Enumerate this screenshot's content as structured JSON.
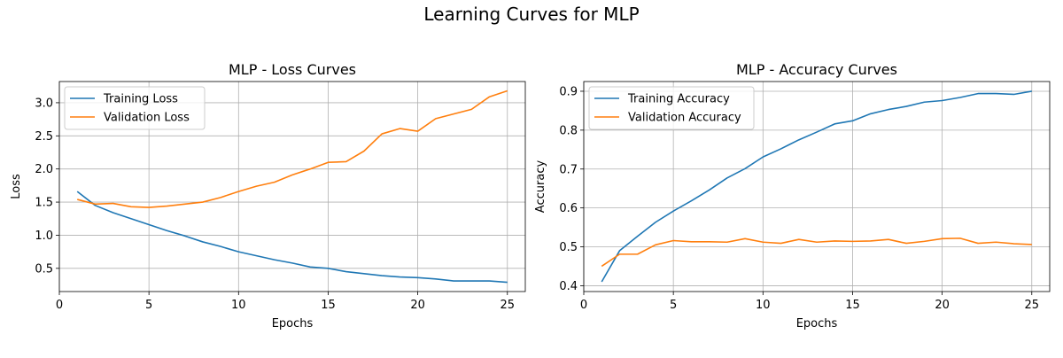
{
  "figure": {
    "title": "Learning Curves for MLP"
  },
  "chart_data": [
    {
      "type": "line",
      "title": "MLP - Loss Curves",
      "xlabel": "Epochs",
      "ylabel": "Loss",
      "xlim": [
        0,
        26
      ],
      "ylim": [
        0.15,
        3.32
      ],
      "xticks": [
        0,
        5,
        10,
        15,
        20,
        25
      ],
      "yticks": [
        0.5,
        1.0,
        1.5,
        2.0,
        2.5,
        3.0
      ],
      "ytick_labels": [
        "0.5",
        "1.0",
        "1.5",
        "2.0",
        "2.5",
        "3.0"
      ],
      "grid": true,
      "legend": "upper left",
      "x": [
        1,
        2,
        3,
        4,
        5,
        6,
        7,
        8,
        9,
        10,
        11,
        12,
        13,
        14,
        15,
        16,
        17,
        18,
        19,
        20,
        21,
        22,
        23,
        24,
        25
      ],
      "series": [
        {
          "name": "Training Loss",
          "color": "#1f77b4",
          "values": [
            1.66,
            1.45,
            1.34,
            1.25,
            1.16,
            1.07,
            0.99,
            0.9,
            0.83,
            0.75,
            0.69,
            0.63,
            0.58,
            0.52,
            0.5,
            0.45,
            0.42,
            0.39,
            0.37,
            0.36,
            0.34,
            0.31,
            0.31,
            0.31,
            0.29
          ]
        },
        {
          "name": "Validation Loss",
          "color": "#ff7f0e",
          "values": [
            1.54,
            1.47,
            1.48,
            1.43,
            1.42,
            1.44,
            1.47,
            1.5,
            1.57,
            1.66,
            1.74,
            1.8,
            1.91,
            2.0,
            2.1,
            2.11,
            2.27,
            2.53,
            2.61,
            2.57,
            2.76,
            2.83,
            2.9,
            3.09,
            3.18
          ]
        }
      ]
    },
    {
      "type": "line",
      "title": "MLP - Accuracy Curves",
      "xlabel": "Epochs",
      "ylabel": "Accuracy",
      "xlim": [
        0,
        26
      ],
      "ylim": [
        0.385,
        0.925
      ],
      "xticks": [
        0,
        5,
        10,
        15,
        20,
        25
      ],
      "yticks": [
        0.4,
        0.5,
        0.6,
        0.7,
        0.8,
        0.9
      ],
      "ytick_labels": [
        "0.4",
        "0.5",
        "0.6",
        "0.7",
        "0.8",
        "0.9"
      ],
      "grid": true,
      "legend": "upper left",
      "x": [
        1,
        2,
        3,
        4,
        5,
        6,
        7,
        8,
        9,
        10,
        11,
        12,
        13,
        14,
        15,
        16,
        17,
        18,
        19,
        20,
        21,
        22,
        23,
        24,
        25
      ],
      "series": [
        {
          "name": "Training Accuracy",
          "color": "#1f77b4",
          "values": [
            0.41,
            0.49,
            0.527,
            0.563,
            0.592,
            0.618,
            0.646,
            0.677,
            0.701,
            0.731,
            0.752,
            0.775,
            0.795,
            0.816,
            0.824,
            0.842,
            0.853,
            0.861,
            0.872,
            0.876,
            0.884,
            0.894,
            0.894,
            0.892,
            0.9
          ]
        },
        {
          "name": "Validation Accuracy",
          "color": "#ff7f0e",
          "values": [
            0.45,
            0.481,
            0.481,
            0.505,
            0.516,
            0.513,
            0.513,
            0.512,
            0.521,
            0.512,
            0.509,
            0.519,
            0.512,
            0.515,
            0.514,
            0.515,
            0.519,
            0.509,
            0.514,
            0.521,
            0.522,
            0.509,
            0.512,
            0.508,
            0.506
          ]
        }
      ]
    }
  ]
}
